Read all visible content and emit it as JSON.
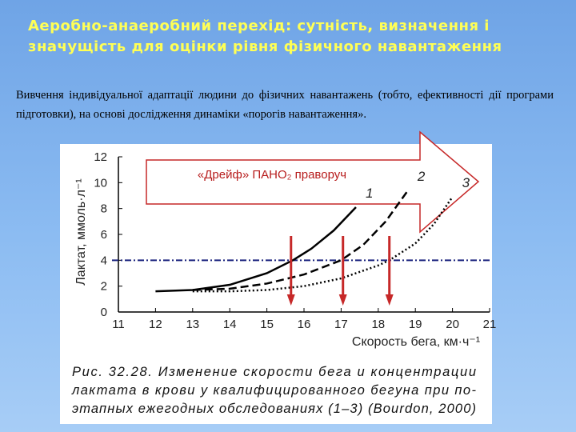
{
  "slide": {
    "title": "Аеробно-анаеробний перехід: сутність, визначення і значущість для оцінки рівня фізичного навантаження",
    "body": "Вивчення індивідуальної адаптації людини до фізичних навантажень (тобто, ефективності дії програми підготовки), на основі дослідження динаміки «порогів навантаження»."
  },
  "chart_data": {
    "type": "line",
    "x_label": "Скорость бега, км·ч⁻¹",
    "y_label": "Лактат, ммоль·л⁻¹",
    "annotation": "«Дрейф» ПАНО₂ праворуч",
    "caption": [
      "Рис. 32.28. Изменение скорости бега и концентрации",
      "лактата в крови у квалифицированного бегуна при по-",
      "этапных ежегодных обследованиях (1–3) (Bourdon, 2000)"
    ],
    "xlim": [
      11,
      21
    ],
    "xticks": [
      11,
      12,
      13,
      14,
      15,
      16,
      17,
      18,
      19,
      20,
      21
    ],
    "ylim": [
      0,
      12
    ],
    "yticks": [
      0,
      2,
      4,
      6,
      8,
      10,
      12
    ],
    "threshold": 4,
    "threshold_color": "#1a237e",
    "arrows_x": [
      15.65,
      17.05,
      18.3
    ],
    "arrow_color": "#c62828",
    "series": [
      {
        "name": "1",
        "color": "#000000",
        "style": "solid",
        "x": [
          12,
          13,
          14,
          15,
          15.7,
          16.2,
          16.8,
          17.4
        ],
        "values": [
          1.6,
          1.7,
          2.1,
          3.0,
          4.0,
          4.9,
          6.3,
          8.1
        ]
      },
      {
        "name": "2",
        "color": "#000000",
        "style": "dashed",
        "x": [
          13,
          14,
          15,
          16,
          17,
          17.6,
          18.2,
          18.8
        ],
        "values": [
          1.7,
          1.8,
          2.2,
          2.9,
          4.0,
          5.2,
          7.0,
          9.4
        ]
      },
      {
        "name": "3",
        "color": "#000000",
        "style": "dotted",
        "x": [
          13,
          14,
          15,
          16,
          17,
          18,
          18.3,
          19,
          19.5,
          20
        ],
        "values": [
          1.6,
          1.6,
          1.7,
          2.0,
          2.6,
          3.6,
          4.0,
          5.3,
          6.8,
          8.9
        ]
      }
    ]
  }
}
